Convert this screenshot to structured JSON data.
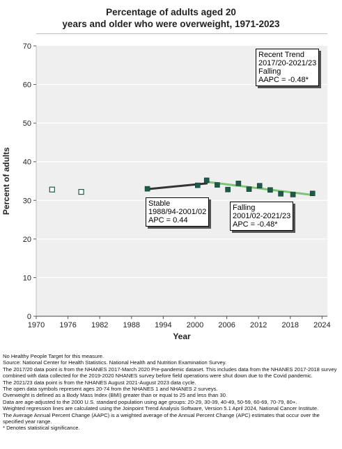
{
  "title_line1": "Percentage of adults aged 20",
  "title_line2": "years and older who were overweight, 1971-2023",
  "chart_data": {
    "type": "scatter",
    "xlabel": "Year",
    "ylabel": "Percent of adults",
    "xlim": [
      1970,
      2025
    ],
    "ylim": [
      0,
      70
    ],
    "xticks": [
      "1970",
      "1976",
      "1982",
      "1988",
      "1994",
      "2000",
      "2006",
      "2012",
      "2018",
      "2024"
    ],
    "xtick_values": [
      1970,
      1976,
      1982,
      1988,
      1994,
      2000,
      2006,
      2012,
      2018,
      2024
    ],
    "yticks": [
      "0",
      "10",
      "20",
      "30",
      "40",
      "50",
      "60",
      "70"
    ],
    "ytick_values": [
      0,
      10,
      20,
      30,
      40,
      50,
      60,
      70
    ],
    "grid": "horizontal",
    "series": [
      {
        "kind": "open",
        "points": [
          [
            1973,
            32.8
          ],
          [
            1978.5,
            32.2
          ]
        ]
      },
      {
        "kind": "filled",
        "points": [
          [
            1991,
            33.0
          ],
          [
            2000.5,
            33.9
          ],
          [
            2002.2,
            35.2
          ],
          [
            2004.2,
            34.0
          ],
          [
            2006.2,
            32.8
          ],
          [
            2008.2,
            34.4
          ],
          [
            2010.2,
            32.9
          ],
          [
            2012.2,
            33.8
          ],
          [
            2014.2,
            32.7
          ],
          [
            2016.2,
            31.7
          ],
          [
            2018.5,
            31.5
          ],
          [
            2022.2,
            31.8
          ]
        ]
      }
    ],
    "trends": [
      {
        "from": [
          1991,
          32.9
        ],
        "to": [
          2002.2,
          34.4
        ],
        "color": "#333333"
      },
      {
        "from": [
          2002.2,
          34.8
        ],
        "to": [
          2022.2,
          31.4
        ],
        "color": "#7cc576"
      }
    ],
    "colors": {
      "filled": "#1e5a4a",
      "open_border": "#1e5a4a",
      "plot_bg": "#efefef",
      "grid": "#ffffff"
    }
  },
  "callouts": {
    "recent": [
      "Recent Trend",
      "2017/20-2021/23",
      "Falling",
      "AAPC = -0.48*"
    ],
    "stable": [
      "Stable",
      "1988/94-2001/02",
      "APC =  0.44"
    ],
    "falling": [
      "Falling",
      "2001/02-2021/23",
      "APC = -0.48*"
    ]
  },
  "notes": [
    "No Healthy People Target for this measure.",
    "Source: National Center for Health Statistics. National Health and Nutrition Examination Survey.",
    "The 2017/20 data point is from the NHANES 2017-March 2020 Pre-pandemic dataset. This includes data from the NHANES 2017-2018 survey combined with data collected for the 2019-2020 NHANES survey before field operations were shut down due to the Covid pandemic.",
    "The 2021/23 data point is from the NHANES August 2021-August 2023 data cycle.",
    "The open data symbols represent ages 20-74 from the NHANES 1 and NHANES 2 surveys.",
    "Overweight is defined as a Body Mass Index (BMI) greater than or equal to 25 and less than 30.",
    "Data are age-adjusted to the 2000 U.S. standard population using age groups: 20-29, 30-39, 40-49, 50-59, 60-69, 70-79, 80+.",
    "Weighted regression lines are calculated using the Joinpoint Trend Analysis Software, Version 5.1 April 2024, National Cancer Institute.",
    "The Average Annual Percent Change (AAPC) is a weighted average of the Annual Percent Change (APC) estimates that occur over the specified year range.",
    "* Denotes statistical significance."
  ]
}
